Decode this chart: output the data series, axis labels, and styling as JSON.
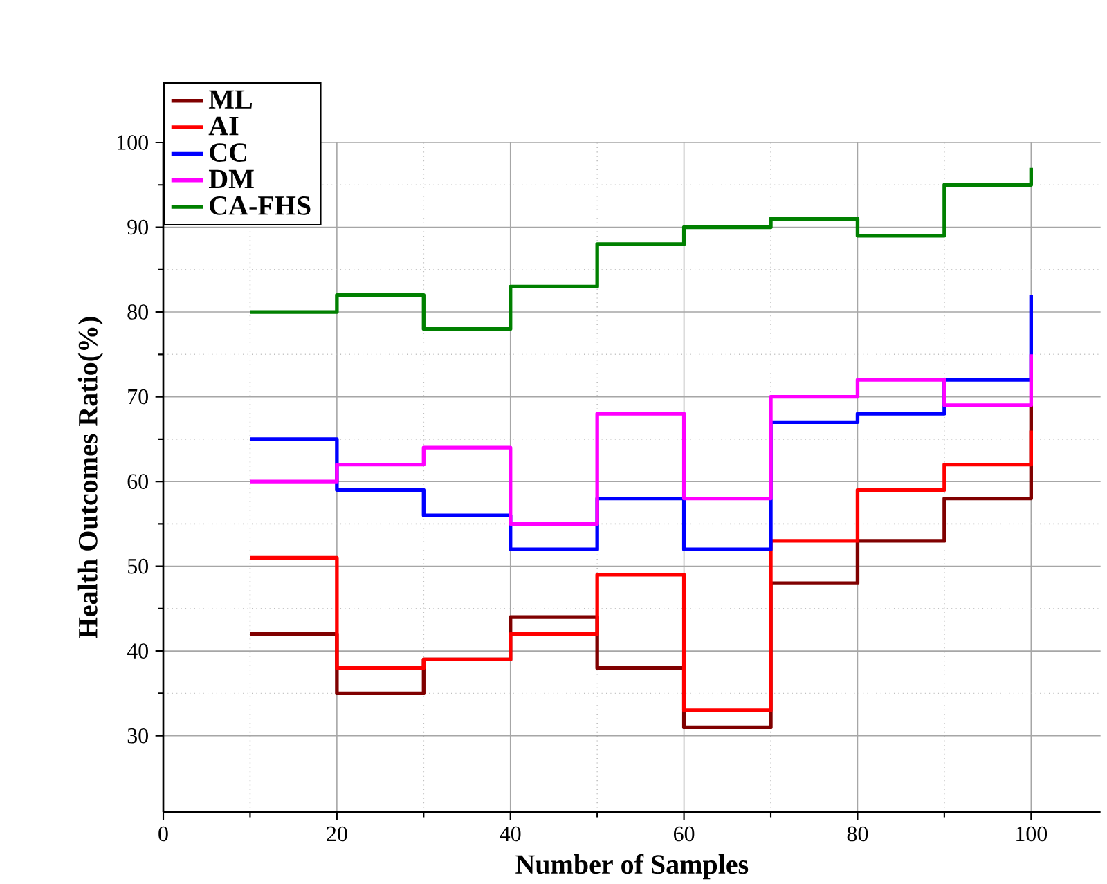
{
  "chart_data": {
    "type": "step",
    "xlabel": "Number of Samples",
    "ylabel": "Health Outcomes Ratio(%)",
    "x": [
      10,
      20,
      30,
      40,
      50,
      60,
      70,
      80,
      90,
      100
    ],
    "series": [
      {
        "name": "ML",
        "color": "#800000",
        "values": [
          42,
          35,
          39,
          44,
          38,
          31,
          48,
          53,
          58,
          69
        ]
      },
      {
        "name": "AI",
        "color": "#ff0000",
        "values": [
          51,
          38,
          39,
          42,
          49,
          33,
          53,
          59,
          62,
          66
        ]
      },
      {
        "name": "CC",
        "color": "#0000ff",
        "values": [
          65,
          59,
          56,
          52,
          58,
          52,
          67,
          68,
          72,
          82
        ]
      },
      {
        "name": "DM",
        "color": "#ff00ff",
        "values": [
          60,
          62,
          64,
          55,
          68,
          58,
          70,
          72,
          69,
          75
        ]
      },
      {
        "name": "CA-FHS",
        "color": "#008000",
        "values": [
          80,
          82,
          78,
          83,
          88,
          90,
          91,
          89,
          95,
          97
        ]
      }
    ],
    "xlim": [
      0,
      108
    ],
    "ylim": [
      21,
      100
    ],
    "xticks": [
      0,
      20,
      40,
      60,
      80,
      100
    ],
    "yticks": [
      30,
      40,
      50,
      60,
      70,
      80,
      90,
      100
    ],
    "grid": true,
    "legend": "top left",
    "marker": "none",
    "line_style": "solid"
  }
}
